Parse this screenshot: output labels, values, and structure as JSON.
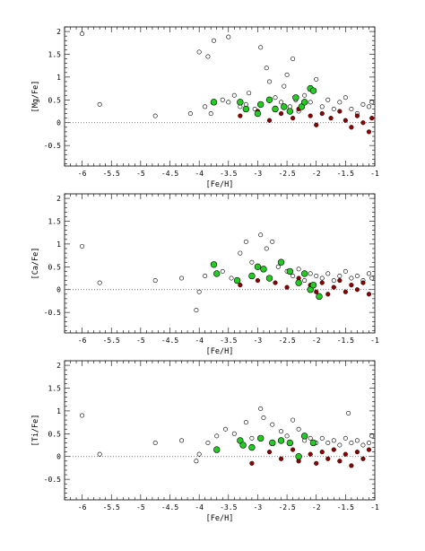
{
  "chart_data": [
    {
      "type": "scatter",
      "xlabel": "[Fe/H]",
      "ylabel": "[Mg/Fe]",
      "xlim": [
        -6.3,
        -1.0
      ],
      "ylim": [
        -0.95,
        2.1
      ],
      "xticks": [
        "-6",
        "-5.5",
        "-5",
        "-4.5",
        "-4",
        "-3.5",
        "-3",
        "-2.5",
        "-2",
        "-1.5",
        "-1"
      ],
      "yticks": [
        "-0.5",
        "0",
        "0.5",
        "1",
        "1.5",
        "2"
      ],
      "reference_line": 0,
      "series": [
        {
          "marker": "open-circle",
          "color": "#000000",
          "points": [
            [
              -6.0,
              1.95
            ],
            [
              -5.7,
              0.4
            ],
            [
              -4.75,
              0.15
            ],
            [
              -4.15,
              0.2
            ],
            [
              -4.0,
              1.55
            ],
            [
              -3.85,
              1.45
            ],
            [
              -3.75,
              1.8
            ],
            [
              -3.5,
              1.88
            ],
            [
              -3.9,
              0.35
            ],
            [
              -3.8,
              0.2
            ],
            [
              -3.6,
              0.5
            ],
            [
              -3.5,
              0.45
            ],
            [
              -3.4,
              0.6
            ],
            [
              -3.3,
              0.35
            ],
            [
              -3.2,
              0.4
            ],
            [
              -3.15,
              0.65
            ],
            [
              -3.05,
              0.3
            ],
            [
              -2.95,
              1.65
            ],
            [
              -2.85,
              1.2
            ],
            [
              -2.8,
              0.9
            ],
            [
              -2.7,
              0.55
            ],
            [
              -2.6,
              0.45
            ],
            [
              -2.55,
              0.8
            ],
            [
              -2.5,
              1.05
            ],
            [
              -2.45,
              0.35
            ],
            [
              -2.4,
              1.4
            ],
            [
              -2.35,
              0.5
            ],
            [
              -2.3,
              0.25
            ],
            [
              -2.2,
              0.6
            ],
            [
              -2.1,
              0.45
            ],
            [
              -2.0,
              0.95
            ],
            [
              -1.9,
              0.35
            ],
            [
              -1.8,
              0.5
            ],
            [
              -1.7,
              0.3
            ],
            [
              -1.6,
              0.45
            ],
            [
              -1.5,
              0.55
            ],
            [
              -1.4,
              0.3
            ],
            [
              -1.3,
              0.2
            ],
            [
              -1.2,
              0.4
            ],
            [
              -1.1,
              0.35
            ],
            [
              -1.05,
              0.45
            ]
          ]
        },
        {
          "marker": "filled-circle",
          "color": "#8b0000",
          "points": [
            [
              -3.3,
              0.15
            ],
            [
              -3.0,
              0.25
            ],
            [
              -2.8,
              0.05
            ],
            [
              -2.6,
              0.2
            ],
            [
              -2.4,
              0.1
            ],
            [
              -2.3,
              0.3
            ],
            [
              -2.1,
              0.15
            ],
            [
              -2.0,
              -0.05
            ],
            [
              -1.9,
              0.2
            ],
            [
              -1.75,
              0.1
            ],
            [
              -1.6,
              0.25
            ],
            [
              -1.5,
              0.05
            ],
            [
              -1.4,
              -0.1
            ],
            [
              -1.3,
              0.15
            ],
            [
              -1.2,
              0.0
            ],
            [
              -1.1,
              -0.2
            ],
            [
              -1.05,
              0.1
            ]
          ]
        },
        {
          "marker": "filled-circle",
          "color": "#22cc22",
          "points": [
            [
              -3.75,
              0.45
            ],
            [
              -3.3,
              0.45
            ],
            [
              -3.2,
              0.3
            ],
            [
              -3.0,
              0.2
            ],
            [
              -2.95,
              0.4
            ],
            [
              -2.8,
              0.5
            ],
            [
              -2.7,
              0.3
            ],
            [
              -2.55,
              0.35
            ],
            [
              -2.45,
              0.25
            ],
            [
              -2.35,
              0.55
            ],
            [
              -2.25,
              0.35
            ],
            [
              -2.1,
              0.75
            ],
            [
              -2.05,
              0.7
            ],
            [
              -2.2,
              0.45
            ]
          ]
        }
      ]
    },
    {
      "type": "scatter",
      "xlabel": "[Fe/H]",
      "ylabel": "[Ca/Fe]",
      "xlim": [
        -6.3,
        -1.0
      ],
      "ylim": [
        -0.95,
        2.1
      ],
      "xticks": [
        "-6",
        "-5.5",
        "-5",
        "-4.5",
        "-4",
        "-3.5",
        "-3",
        "-2.5",
        "-2",
        "-1.5",
        "-1"
      ],
      "yticks": [
        "-0.5",
        "0",
        "0.5",
        "1",
        "1.5",
        "2"
      ],
      "reference_line": 0,
      "series": [
        {
          "marker": "open-circle",
          "color": "#000000",
          "points": [
            [
              -6.0,
              0.95
            ],
            [
              -5.7,
              0.15
            ],
            [
              -4.75,
              0.2
            ],
            [
              -4.3,
              0.25
            ],
            [
              -4.05,
              -0.45
            ],
            [
              -4.0,
              -0.05
            ],
            [
              -3.9,
              0.3
            ],
            [
              -3.6,
              0.4
            ],
            [
              -3.45,
              0.25
            ],
            [
              -3.3,
              0.8
            ],
            [
              -3.2,
              1.05
            ],
            [
              -3.1,
              0.6
            ],
            [
              -2.95,
              1.2
            ],
            [
              -2.85,
              0.9
            ],
            [
              -2.75,
              1.05
            ],
            [
              -2.65,
              0.5
            ],
            [
              -2.5,
              0.4
            ],
            [
              -2.4,
              0.3
            ],
            [
              -2.3,
              0.45
            ],
            [
              -2.2,
              0.2
            ],
            [
              -2.1,
              0.35
            ],
            [
              -2.0,
              0.3
            ],
            [
              -1.9,
              0.25
            ],
            [
              -1.8,
              0.35
            ],
            [
              -1.7,
              0.2
            ],
            [
              -1.6,
              0.3
            ],
            [
              -1.5,
              0.4
            ],
            [
              -1.4,
              0.25
            ],
            [
              -1.3,
              0.3
            ],
            [
              -1.2,
              0.2
            ],
            [
              -1.1,
              0.35
            ],
            [
              -1.05,
              0.25
            ]
          ]
        },
        {
          "marker": "filled-circle",
          "color": "#8b0000",
          "points": [
            [
              -3.3,
              0.1
            ],
            [
              -3.0,
              0.2
            ],
            [
              -2.7,
              0.15
            ],
            [
              -2.5,
              0.05
            ],
            [
              -2.3,
              0.25
            ],
            [
              -2.1,
              0.1
            ],
            [
              -2.0,
              -0.05
            ],
            [
              -1.9,
              0.15
            ],
            [
              -1.8,
              -0.1
            ],
            [
              -1.7,
              0.05
            ],
            [
              -1.6,
              0.2
            ],
            [
              -1.5,
              -0.05
            ],
            [
              -1.4,
              0.1
            ],
            [
              -1.3,
              0.0
            ],
            [
              -1.2,
              0.15
            ],
            [
              -1.1,
              -0.1
            ]
          ]
        },
        {
          "marker": "filled-circle",
          "color": "#22cc22",
          "points": [
            [
              -3.75,
              0.55
            ],
            [
              -3.7,
              0.35
            ],
            [
              -3.35,
              0.2
            ],
            [
              -3.1,
              0.3
            ],
            [
              -3.0,
              0.5
            ],
            [
              -2.9,
              0.45
            ],
            [
              -2.8,
              0.25
            ],
            [
              -2.6,
              0.6
            ],
            [
              -2.45,
              0.4
            ],
            [
              -2.3,
              0.15
            ],
            [
              -2.2,
              0.35
            ],
            [
              -2.1,
              0.0
            ],
            [
              -2.05,
              0.1
            ],
            [
              -1.95,
              -0.15
            ]
          ]
        }
      ]
    },
    {
      "type": "scatter",
      "xlabel": "[Fe/H]",
      "ylabel": "[Ti/Fe]",
      "xlim": [
        -6.3,
        -1.0
      ],
      "ylim": [
        -0.95,
        2.1
      ],
      "xticks": [
        "-6",
        "-5.5",
        "-5",
        "-4.5",
        "-4",
        "-3.5",
        "-3",
        "-2.5",
        "-2",
        "-1.5",
        "-1"
      ],
      "yticks": [
        "-0.5",
        "0",
        "0.5",
        "1",
        "1.5",
        "2"
      ],
      "reference_line": 0,
      "series": [
        {
          "marker": "open-circle",
          "color": "#000000",
          "points": [
            [
              -6.0,
              0.9
            ],
            [
              -5.7,
              0.05
            ],
            [
              -4.75,
              0.3
            ],
            [
              -4.3,
              0.35
            ],
            [
              -4.05,
              -0.1
            ],
            [
              -4.0,
              0.05
            ],
            [
              -3.85,
              0.3
            ],
            [
              -3.7,
              0.45
            ],
            [
              -3.55,
              0.6
            ],
            [
              -3.4,
              0.5
            ],
            [
              -3.2,
              0.75
            ],
            [
              -3.1,
              0.4
            ],
            [
              -2.95,
              1.05
            ],
            [
              -2.9,
              0.85
            ],
            [
              -2.75,
              0.7
            ],
            [
              -2.6,
              0.55
            ],
            [
              -2.5,
              0.45
            ],
            [
              -2.4,
              0.8
            ],
            [
              -2.3,
              0.6
            ],
            [
              -2.2,
              0.35
            ],
            [
              -2.1,
              0.4
            ],
            [
              -2.0,
              0.3
            ],
            [
              -1.9,
              0.4
            ],
            [
              -1.8,
              0.3
            ],
            [
              -1.7,
              0.35
            ],
            [
              -1.6,
              0.25
            ],
            [
              -1.5,
              0.4
            ],
            [
              -1.45,
              0.95
            ],
            [
              -1.4,
              0.3
            ],
            [
              -1.3,
              0.35
            ],
            [
              -1.2,
              0.25
            ],
            [
              -1.1,
              0.3
            ],
            [
              -1.05,
              0.45
            ]
          ]
        },
        {
          "marker": "filled-circle",
          "color": "#8b0000",
          "points": [
            [
              -3.1,
              -0.15
            ],
            [
              -2.8,
              0.1
            ],
            [
              -2.6,
              -0.05
            ],
            [
              -2.4,
              0.15
            ],
            [
              -2.3,
              -0.1
            ],
            [
              -2.1,
              0.05
            ],
            [
              -2.0,
              -0.15
            ],
            [
              -1.9,
              0.1
            ],
            [
              -1.8,
              -0.05
            ],
            [
              -1.7,
              0.15
            ],
            [
              -1.6,
              -0.1
            ],
            [
              -1.5,
              0.05
            ],
            [
              -1.4,
              -0.2
            ],
            [
              -1.3,
              0.1
            ],
            [
              -1.2,
              -0.05
            ],
            [
              -1.1,
              0.15
            ]
          ]
        },
        {
          "marker": "filled-circle",
          "color": "#22cc22",
          "points": [
            [
              -3.7,
              0.15
            ],
            [
              -3.3,
              0.35
            ],
            [
              -3.25,
              0.25
            ],
            [
              -3.1,
              0.2
            ],
            [
              -2.95,
              0.4
            ],
            [
              -2.75,
              0.3
            ],
            [
              -2.6,
              0.35
            ],
            [
              -2.45,
              0.3
            ],
            [
              -2.3,
              0.0
            ],
            [
              -2.2,
              0.45
            ],
            [
              -2.05,
              0.3
            ]
          ]
        }
      ]
    }
  ]
}
